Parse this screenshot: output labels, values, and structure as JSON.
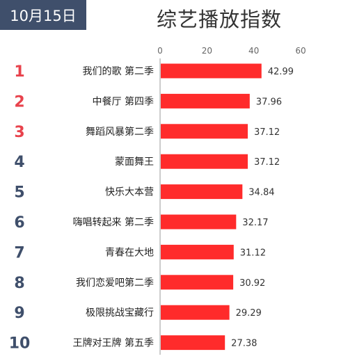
{
  "header": {
    "date": "10月15日",
    "title": "综艺播放指数"
  },
  "colors": {
    "bar": "#ff2b2b",
    "top_rank": "#e8424c",
    "rank": "#3f4f6b",
    "badge": "#3f4f6b"
  },
  "chart_data": {
    "type": "bar",
    "orientation": "horizontal",
    "title": "综艺播放指数",
    "xlim": [
      0,
      60
    ],
    "x_ticks": [
      "0",
      "20",
      "40",
      "60"
    ],
    "grid": false,
    "ranks": [
      "1",
      "2",
      "3",
      "4",
      "5",
      "6",
      "7",
      "8",
      "9",
      "10"
    ],
    "categories": [
      "我们的歌 第二季",
      "中餐厅 第四季",
      "舞蹈风暴第二季",
      "蒙面舞王",
      "快乐大本营",
      "嗨唱转起来 第二季",
      "青春在大地",
      "我们恋爱吧第二季",
      "极限挑战宝藏行",
      "王牌对王牌 第五季"
    ],
    "values": [
      42.99,
      37.96,
      37.12,
      37.12,
      34.84,
      32.17,
      31.12,
      30.92,
      29.29,
      27.38
    ],
    "value_labels": [
      "42.99",
      "37.96",
      "37.12",
      "37.12",
      "34.84",
      "32.17",
      "31.12",
      "30.92",
      "29.29",
      "27.38"
    ]
  }
}
